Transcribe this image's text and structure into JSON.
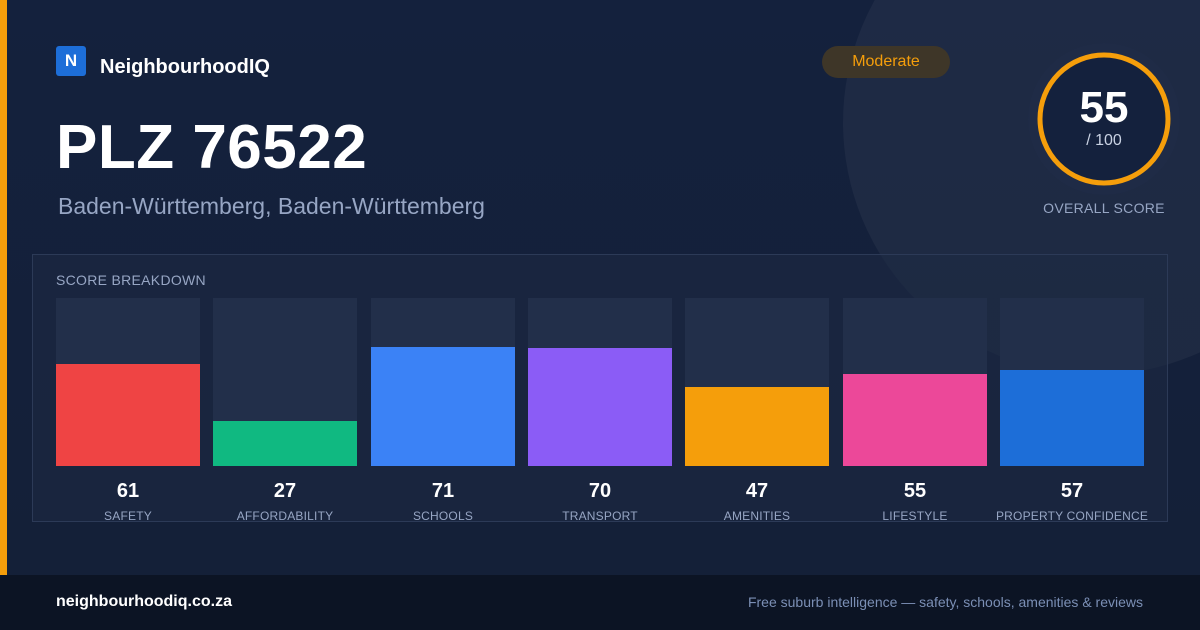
{
  "brand": {
    "logo_letter": "N",
    "name": "NeighbourhoodIQ"
  },
  "header": {
    "title": "PLZ 76522",
    "subtitle": "Baden-Württemberg, Baden-Württemberg",
    "badge": "Moderate"
  },
  "overall": {
    "score": "55",
    "max": "/ 100",
    "caption": "OVERALL SCORE",
    "fraction": 0.55
  },
  "breakdown": {
    "title": "SCORE BREAKDOWN",
    "max": 100,
    "items": [
      {
        "label": "SAFETY",
        "value": 61,
        "color": "#ef4444"
      },
      {
        "label": "AFFORDABILITY",
        "value": 27,
        "color": "#10b981"
      },
      {
        "label": "SCHOOLS",
        "value": 71,
        "color": "#3b82f6"
      },
      {
        "label": "TRANSPORT",
        "value": 70,
        "color": "#8b5cf6"
      },
      {
        "label": "AMENITIES",
        "value": 47,
        "color": "#f59e0b"
      },
      {
        "label": "LIFESTYLE",
        "value": 55,
        "color": "#ec4899"
      },
      {
        "label": "PROPERTY CONFIDENCE",
        "value": 57,
        "color": "#1d6ed8"
      }
    ]
  },
  "colors": {
    "accent": "#f59e0b",
    "brand": "#1d6ed8",
    "background": "#14213d",
    "footer": "#0c1424"
  },
  "footer": {
    "domain": "neighbourhoodiq.co.za",
    "tagline": "Free suburb intelligence — safety, schools, amenities & reviews"
  }
}
